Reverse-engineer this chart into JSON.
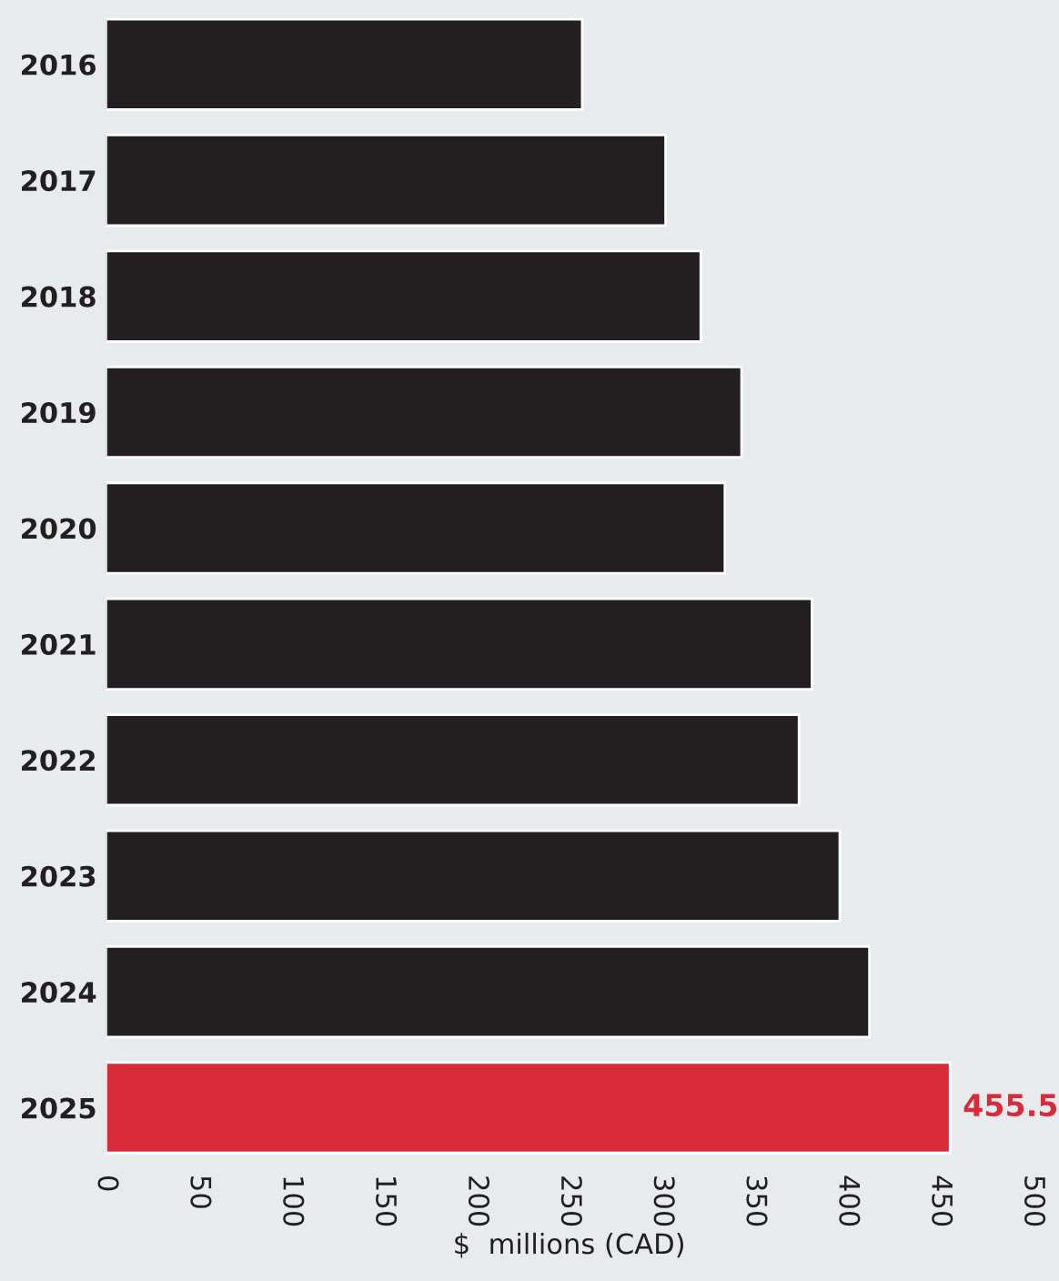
{
  "chart_data": {
    "type": "bar",
    "orientation": "horizontal",
    "xlabel": "$  millions (CAD)",
    "categories": [
      "2016",
      "2017",
      "2018",
      "2019",
      "2020",
      "2021",
      "2022",
      "2023",
      "2024",
      "2025"
    ],
    "values": [
      257,
      302,
      321,
      343,
      334,
      381,
      374,
      396,
      412,
      455.5
    ],
    "colors": [
      "#231f20",
      "#231f20",
      "#231f20",
      "#231f20",
      "#231f20",
      "#231f20",
      "#231f20",
      "#231f20",
      "#231f20",
      "#d92a3a"
    ],
    "value_labels": [
      null,
      null,
      null,
      null,
      null,
      null,
      null,
      null,
      null,
      "455.5"
    ],
    "xlim": [
      0,
      500
    ],
    "xticks": [
      0,
      50,
      100,
      150,
      200,
      250,
      300,
      350,
      400,
      450,
      500
    ],
    "grid": false,
    "legend": false
  }
}
